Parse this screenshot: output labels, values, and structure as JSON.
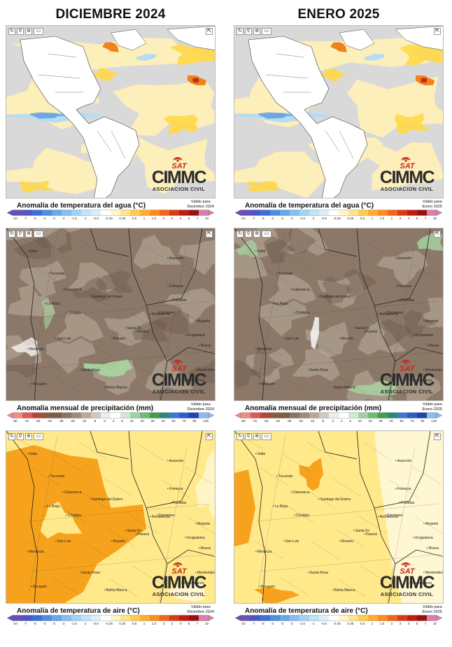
{
  "columns": {
    "left": "DICIEMBRE 2024",
    "right": "ENERO 2025"
  },
  "logo": {
    "sat": "SAT",
    "name": "CIMMC",
    "subtitle": "ASOCIACION CIVIL"
  },
  "toolbar_icons": [
    "refresh-icon",
    "search-icon",
    "zoom-icon",
    "layers-icon",
    "expand-icon"
  ],
  "valid_label": "Válido para",
  "rows": [
    {
      "id": "sst",
      "legend_title": "Anomalía de temperatura del agua (°C)",
      "valid_left": "Diciembre 2024",
      "valid_right": "Enero 2025",
      "ticks": [
        "-10",
        "-7",
        "-5",
        "-4",
        "-3",
        "-2",
        "-1.5",
        "-1",
        "-0.5",
        "-0.25",
        "0.25",
        "0.5",
        "1",
        "1.5",
        "2",
        "3",
        "4",
        "5",
        "7",
        "10"
      ],
      "colors": [
        "#6a4fb5",
        "#4c55c9",
        "#3d6fd8",
        "#4d8ee0",
        "#66a8e8",
        "#84bff0",
        "#a2d2f4",
        "#bfe3f8",
        "#dbeffa",
        "#ffffff",
        "#fff6c8",
        "#ffe48a",
        "#ffcc4d",
        "#ffad2e",
        "#ff8c1a",
        "#f26419",
        "#dc3a12",
        "#c01f10",
        "#9a1010",
        "#d97fb0"
      ]
    },
    {
      "id": "precip",
      "legend_title": "Anomalía mensual de precipitación (mm)",
      "valid_left": "Diciembre 2024",
      "valid_right": "Enero 2025",
      "ticks": [
        "-80",
        "-70",
        "-55",
        "-45",
        "-35",
        "-25",
        "-15",
        "-8",
        "-4",
        "2",
        "8",
        "10",
        "20",
        "30",
        "40",
        "50",
        "70",
        "90",
        "125"
      ],
      "colors": [
        "#f08a8a",
        "#dd5a4e",
        "#b9443a",
        "#8e5a3a",
        "#7b5f4a",
        "#8c7460",
        "#a0897a",
        "#b8a89a",
        "#d2c7bc",
        "#ececec",
        "#ffffff",
        "#cfe8cf",
        "#9fd29f",
        "#6fbb72",
        "#3f9f4a",
        "#2a8a7a",
        "#3c78d0",
        "#2d5ec8",
        "#1d44b0",
        "#8fb8f0"
      ]
    },
    {
      "id": "air",
      "legend_title": "Anomalía de temperatura de aire (°C)",
      "valid_left": "Diciembre 2024",
      "valid_right": "Enero 2025",
      "ticks": [
        "-10",
        "-7",
        "-5",
        "-4",
        "-3",
        "-2",
        "-1.5",
        "-1",
        "-0.5",
        "-0.25",
        "0.25",
        "0.5",
        "1",
        "1.5",
        "2",
        "3",
        "4",
        "5",
        "7",
        "10"
      ],
      "colors": [
        "#6a4fb5",
        "#4c55c9",
        "#3d6fd8",
        "#4d8ee0",
        "#66a8e8",
        "#84bff0",
        "#a2d2f4",
        "#bfe3f8",
        "#dbeffa",
        "#ffffff",
        "#fff6c8",
        "#ffe48a",
        "#ffcc4d",
        "#ffad2e",
        "#ff8c1a",
        "#f26419",
        "#dc3a12",
        "#c01f10",
        "#9a1010",
        "#d97fb0"
      ]
    }
  ],
  "map_cities": [
    "Salta",
    "Tucumán",
    "Córdoba",
    "Rosario",
    "Santa Fe",
    "Paraná",
    "Corrientes",
    "Posadas",
    "Resistencia",
    "Formosa",
    "San Luis",
    "Mendoza",
    "Neuquén",
    "La Rioja",
    "Catamarca",
    "Santiago del Estero",
    "Montevideo",
    "Buenos Aires",
    "Asunción",
    "Alegrete",
    "Uruguaiana",
    "Rivera",
    "Santa Rosa",
    "Bahía Blanca"
  ],
  "map_colors": {
    "sea_gray": "#d9d9d9",
    "land_white": "#ffffff",
    "sst_light": "#fff0b8",
    "sst_mid": "#ffd84d",
    "sst_hot": "#f0821a",
    "sst_red": "#c8281e",
    "sst_cool": "#b5dcf5",
    "sst_blue": "#4f8ee0",
    "precip_brown": "#8c7868",
    "precip_light": "#bcae9e",
    "precip_green": "#a8d6a0",
    "air_yellow": "#ffe98a",
    "air_orange": "#f7a21c",
    "air_pale": "#fff6d2",
    "brand_red": "#c8281e"
  }
}
